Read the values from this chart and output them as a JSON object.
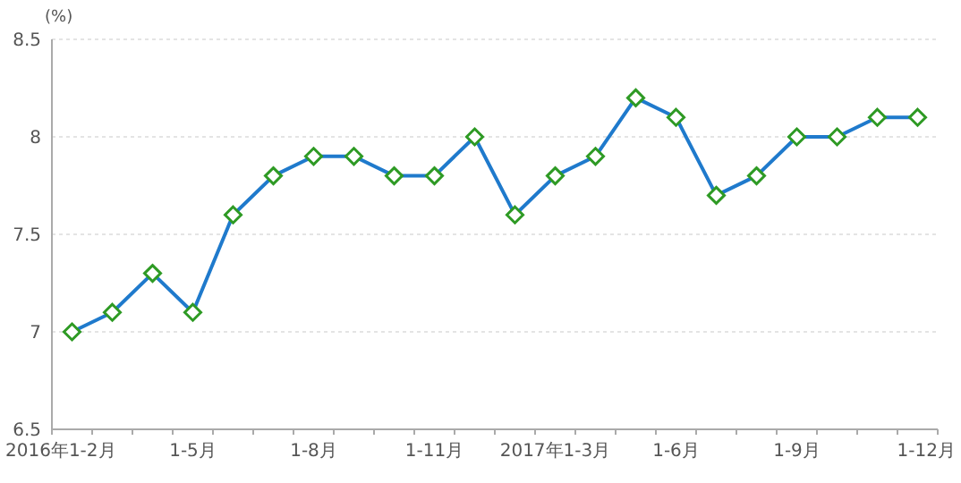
{
  "chart_data": {
    "type": "line",
    "ylabel": "(%)",
    "categories": [
      "2016年1-2月",
      null,
      null,
      "1-5月",
      null,
      null,
      "1-8月",
      null,
      null,
      "1-11月",
      null,
      null,
      "2017年1-3月",
      null,
      null,
      "1-6月",
      null,
      null,
      "1-9月",
      null,
      null,
      "1-12月"
    ],
    "series": [
      {
        "color": "#1f7acc",
        "values": [
          7.0,
          7.1,
          7.3,
          7.1,
          7.6,
          7.8,
          7.9,
          7.9,
          7.8,
          7.8,
          8.0,
          7.6,
          7.8,
          7.9,
          8.2,
          8.1,
          7.7,
          7.8,
          8.0,
          8.0,
          8.1,
          8.1
        ]
      }
    ],
    "ylim": [
      6.5,
      8.5
    ],
    "yticks": [
      6.5,
      7,
      7.5,
      8,
      8.5
    ],
    "grid": "y",
    "marker": "diamond"
  }
}
